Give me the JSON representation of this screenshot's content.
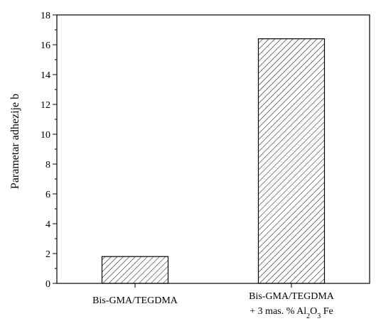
{
  "chart_data": {
    "type": "bar",
    "title": "",
    "xlabel": "",
    "ylabel": "Parametar adhezije b",
    "categories": [
      [
        "Bis-GMA/TEGDMA"
      ],
      [
        "Bis-GMA/TEGDMA",
        "+ 3 mas. % Al",
        "2",
        "O",
        "3",
        " Fe"
      ]
    ],
    "values": [
      1.8,
      16.4
    ],
    "ylim": [
      0,
      18
    ],
    "yticks": [
      "0",
      "2",
      "4",
      "6",
      "8",
      "10",
      "12",
      "14",
      "16",
      "18"
    ],
    "grid": false,
    "bar_fill": "hatched",
    "colors": {
      "bar_stroke": "#000000",
      "hatch": "#000000",
      "background": "#ffffff"
    }
  }
}
